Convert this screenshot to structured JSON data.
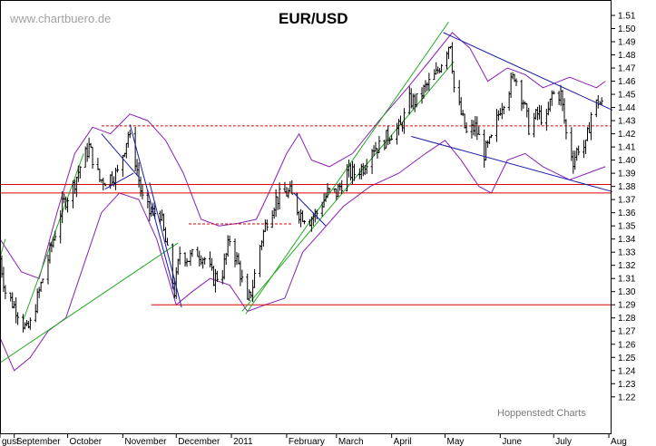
{
  "chart_data": {
    "type": "line",
    "subtype": "ohlc-bars",
    "title": "EUR/USD",
    "watermark": "www.chartbuero.de",
    "source_label": "Hoppenstedt Charts",
    "ylim": [
      1.215,
      1.515
    ],
    "y_ticks": [
      1.22,
      1.23,
      1.24,
      1.25,
      1.26,
      1.27,
      1.28,
      1.29,
      1.3,
      1.31,
      1.32,
      1.33,
      1.34,
      1.35,
      1.36,
      1.37,
      1.38,
      1.39,
      1.4,
      1.41,
      1.42,
      1.43,
      1.44,
      1.45,
      1.46,
      1.47,
      1.48,
      1.49,
      1.5,
      1.51
    ],
    "x_range": [
      "2010-08-24",
      "2011-08-02"
    ],
    "x_ticks": [
      {
        "label": "gust",
        "date": "2010-08-24"
      },
      {
        "label": "September",
        "date": "2010-09-01"
      },
      {
        "label": "October",
        "date": "2010-10-01"
      },
      {
        "label": "November",
        "date": "2010-11-01"
      },
      {
        "label": "December",
        "date": "2010-12-01"
      },
      {
        "label": "2011",
        "date": "2011-01-01"
      },
      {
        "label": "February",
        "date": "2011-02-01"
      },
      {
        "label": "March",
        "date": "2011-03-01"
      },
      {
        "label": "April",
        "date": "2011-04-01"
      },
      {
        "label": "May",
        "date": "2011-05-01"
      },
      {
        "label": "June",
        "date": "2011-06-01"
      },
      {
        "label": "July",
        "date": "2011-07-01"
      },
      {
        "label": "Aug",
        "date": "2011-08-01"
      }
    ],
    "price_path": [
      [
        "2010-08-24",
        1.325
      ],
      [
        "2010-08-27",
        1.3
      ],
      [
        "2010-09-03",
        1.285
      ],
      [
        "2010-09-08",
        1.27
      ],
      [
        "2010-09-10",
        1.275
      ],
      [
        "2010-09-15",
        1.3
      ],
      [
        "2010-09-21",
        1.33
      ],
      [
        "2010-09-28",
        1.365
      ],
      [
        "2010-10-04",
        1.38
      ],
      [
        "2010-10-08",
        1.395
      ],
      [
        "2010-10-13",
        1.41
      ],
      [
        "2010-10-19",
        1.385
      ],
      [
        "2010-10-22",
        1.385
      ],
      [
        "2010-10-29",
        1.39
      ],
      [
        "2010-11-04",
        1.42
      ],
      [
        "2010-11-08",
        1.4
      ],
      [
        "2010-11-12",
        1.37
      ],
      [
        "2010-11-16",
        1.36
      ],
      [
        "2010-11-22",
        1.36
      ],
      [
        "2010-11-26",
        1.33
      ],
      [
        "2010-11-30",
        1.3
      ],
      [
        "2010-12-03",
        1.33
      ],
      [
        "2010-12-08",
        1.325
      ],
      [
        "2010-12-13",
        1.33
      ],
      [
        "2010-12-17",
        1.325
      ],
      [
        "2010-12-22",
        1.31
      ],
      [
        "2010-12-27",
        1.315
      ],
      [
        "2010-12-31",
        1.34
      ],
      [
        "2011-01-05",
        1.32
      ],
      [
        "2011-01-10",
        1.29
      ],
      [
        "2011-01-13",
        1.305
      ],
      [
        "2011-01-17",
        1.335
      ],
      [
        "2011-01-21",
        1.355
      ],
      [
        "2011-01-26",
        1.37
      ],
      [
        "2011-01-31",
        1.375
      ],
      [
        "2011-02-03",
        1.375
      ],
      [
        "2011-02-08",
        1.36
      ],
      [
        "2011-02-14",
        1.355
      ],
      [
        "2011-02-18",
        1.36
      ],
      [
        "2011-02-24",
        1.375
      ],
      [
        "2011-03-01",
        1.375
      ],
      [
        "2011-03-07",
        1.39
      ],
      [
        "2011-03-11",
        1.39
      ],
      [
        "2011-03-16",
        1.395
      ],
      [
        "2011-03-21",
        1.41
      ],
      [
        "2011-03-25",
        1.41
      ],
      [
        "2011-03-31",
        1.42
      ],
      [
        "2011-04-06",
        1.425
      ],
      [
        "2011-04-11",
        1.445
      ],
      [
        "2011-04-15",
        1.445
      ],
      [
        "2011-04-20",
        1.455
      ],
      [
        "2011-04-26",
        1.465
      ],
      [
        "2011-05-02",
        1.485
      ],
      [
        "2011-05-04",
        1.49
      ],
      [
        "2011-05-06",
        1.455
      ],
      [
        "2011-05-10",
        1.435
      ],
      [
        "2011-05-13",
        1.42
      ],
      [
        "2011-05-18",
        1.425
      ],
      [
        "2011-05-23",
        1.405
      ],
      [
        "2011-05-27",
        1.415
      ],
      [
        "2011-06-01",
        1.44
      ],
      [
        "2011-06-06",
        1.455
      ],
      [
        "2011-06-09",
        1.465
      ],
      [
        "2011-06-14",
        1.445
      ],
      [
        "2011-06-17",
        1.425
      ],
      [
        "2011-06-22",
        1.435
      ],
      [
        "2011-06-27",
        1.43
      ],
      [
        "2011-06-30",
        1.45
      ],
      [
        "2011-07-05",
        1.45
      ],
      [
        "2011-07-08",
        1.42
      ],
      [
        "2011-07-12",
        1.4
      ],
      [
        "2011-07-15",
        1.41
      ],
      [
        "2011-07-19",
        1.41
      ],
      [
        "2011-07-22",
        1.435
      ],
      [
        "2011-07-26",
        1.445
      ],
      [
        "2011-07-29",
        1.44
      ]
    ],
    "horizontal_lines": [
      {
        "y": 1.426,
        "from": "2010-10-20",
        "to": "2011-08-02",
        "style": "dashed",
        "color": "#dd0000"
      },
      {
        "y": 1.3815,
        "from": "2010-08-24",
        "to": "2011-08-02",
        "style": "solid",
        "color": "#dd0000"
      },
      {
        "y": 1.375,
        "from": "2010-08-24",
        "to": "2011-08-02",
        "style": "solid",
        "color": "#dd0000"
      },
      {
        "y": 1.29,
        "from": "2010-11-17",
        "to": "2011-08-02",
        "style": "solid",
        "color": "#dd0000"
      },
      {
        "y": 1.3515,
        "from": "2010-12-08",
        "to": "2011-02-04",
        "style": "dashed",
        "color": "#dd0000"
      }
    ],
    "trend_lines_blue": [
      {
        "p1": [
          "2010-10-20",
          1.42
        ],
        "p2": [
          "2010-11-10",
          1.387
        ]
      },
      {
        "p1": [
          "2010-10-22",
          1.378
        ],
        "p2": [
          "2010-11-07",
          1.39
        ]
      },
      {
        "p1": [
          "2010-11-05",
          1.427
        ],
        "p2": [
          "2010-11-30",
          1.3
        ]
      },
      {
        "p1": [
          "2010-11-16",
          1.383
        ],
        "p2": [
          "2010-12-04",
          1.288
        ]
      },
      {
        "p1": [
          "2011-02-05",
          1.375
        ],
        "p2": [
          "2011-02-23",
          1.35
        ]
      },
      {
        "p1": [
          "2011-04-30",
          1.497
        ],
        "p2": [
          "2011-08-03",
          1.438
        ]
      },
      {
        "p1": [
          "2011-04-12",
          1.418
        ],
        "p2": [
          "2011-08-03",
          1.376
        ]
      }
    ],
    "trend_lines_green": [
      {
        "p1": [
          "2010-08-23",
          1.245
        ],
        "p2": [
          "2010-12-02",
          1.337
        ]
      },
      {
        "p1": [
          "2010-09-06",
          1.278
        ],
        "p2": [
          "2010-10-10",
          1.405
        ]
      },
      {
        "p1": [
          "2010-08-24",
          1.326
        ],
        "p2": [
          "2010-08-27",
          1.34
        ]
      },
      {
        "p1": [
          "2011-01-09",
          1.283
        ],
        "p2": [
          "2011-05-03",
          1.505
        ]
      },
      {
        "p1": [
          "2011-01-07",
          1.285
        ],
        "p2": [
          "2011-05-06",
          1.475
        ]
      }
    ],
    "bollinger": {
      "upper": [
        [
          "2010-08-24",
          1.34
        ],
        [
          "2010-09-05",
          1.315
        ],
        [
          "2010-09-15",
          1.31
        ],
        [
          "2010-09-25",
          1.36
        ],
        [
          "2010-10-05",
          1.405
        ],
        [
          "2010-10-15",
          1.425
        ],
        [
          "2010-10-25",
          1.42
        ],
        [
          "2010-11-05",
          1.435
        ],
        [
          "2010-11-15",
          1.43
        ],
        [
          "2010-11-25",
          1.415
        ],
        [
          "2010-12-05",
          1.39
        ],
        [
          "2010-12-15",
          1.355
        ],
        [
          "2010-12-25",
          1.35
        ],
        [
          "2011-01-05",
          1.352
        ],
        [
          "2011-01-15",
          1.355
        ],
        [
          "2011-01-22",
          1.375
        ],
        [
          "2011-02-01",
          1.405
        ],
        [
          "2011-02-08",
          1.42
        ],
        [
          "2011-02-15",
          1.4
        ],
        [
          "2011-02-25",
          1.395
        ],
        [
          "2011-03-10",
          1.405
        ],
        [
          "2011-03-25",
          1.43
        ],
        [
          "2011-04-10",
          1.455
        ],
        [
          "2011-04-25",
          1.48
        ],
        [
          "2011-05-05",
          1.497
        ],
        [
          "2011-05-15",
          1.485
        ],
        [
          "2011-05-25",
          1.46
        ],
        [
          "2011-06-05",
          1.47
        ],
        [
          "2011-06-15",
          1.465
        ],
        [
          "2011-06-25",
          1.455
        ],
        [
          "2011-07-10",
          1.463
        ],
        [
          "2011-07-25",
          1.455
        ],
        [
          "2011-07-30",
          1.46
        ]
      ],
      "lower": [
        [
          "2010-08-24",
          1.265
        ],
        [
          "2010-09-01",
          1.24
        ],
        [
          "2010-09-10",
          1.25
        ],
        [
          "2010-09-20",
          1.27
        ],
        [
          "2010-09-30",
          1.28
        ],
        [
          "2010-10-10",
          1.32
        ],
        [
          "2010-10-20",
          1.36
        ],
        [
          "2010-10-30",
          1.375
        ],
        [
          "2010-11-10",
          1.37
        ],
        [
          "2010-11-20",
          1.34
        ],
        [
          "2010-12-01",
          1.29
        ],
        [
          "2010-12-10",
          1.3
        ],
        [
          "2010-12-20",
          1.31
        ],
        [
          "2010-12-31",
          1.305
        ],
        [
          "2011-01-10",
          1.285
        ],
        [
          "2011-01-20",
          1.29
        ],
        [
          "2011-01-31",
          1.295
        ],
        [
          "2011-02-10",
          1.33
        ],
        [
          "2011-02-20",
          1.345
        ],
        [
          "2011-03-05",
          1.365
        ],
        [
          "2011-03-20",
          1.38
        ],
        [
          "2011-04-05",
          1.39
        ],
        [
          "2011-04-20",
          1.405
        ],
        [
          "2011-05-01",
          1.415
        ],
        [
          "2011-05-10",
          1.4
        ],
        [
          "2011-05-20",
          1.38
        ],
        [
          "2011-05-27",
          1.375
        ],
        [
          "2011-06-05",
          1.4
        ],
        [
          "2011-06-15",
          1.405
        ],
        [
          "2011-06-25",
          1.395
        ],
        [
          "2011-07-10",
          1.385
        ],
        [
          "2011-07-20",
          1.39
        ],
        [
          "2011-07-30",
          1.395
        ]
      ]
    }
  }
}
